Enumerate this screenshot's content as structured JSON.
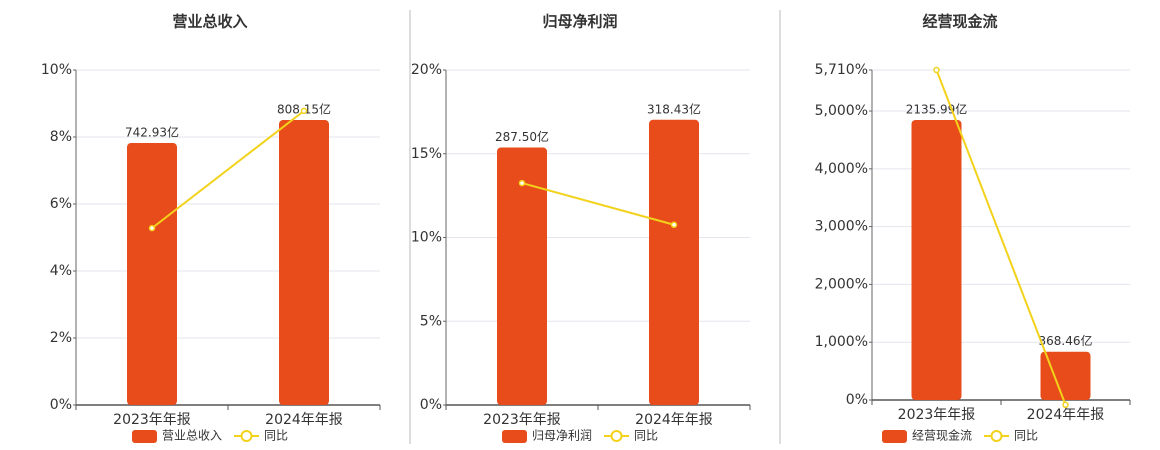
{
  "chart_data": [
    {
      "type": "bar-line",
      "title": "营业总收入",
      "categories": [
        "2023年年报",
        "2024年年报"
      ],
      "series": [
        {
          "name": "营业总收入",
          "color": "#e84c1a",
          "axis": "y2",
          "values": [
            742.93,
            808.15
          ],
          "value_labels": [
            "742.93亿",
            "808.15亿"
          ]
        },
        {
          "name": "同比",
          "color": "#f2d21b",
          "values": [
            5.28,
            8.78
          ]
        }
      ],
      "ylim": [
        0,
        10
      ],
      "yticks": [
        {
          "value": 0,
          "label": "0%"
        },
        {
          "value": 2,
          "label": "2%"
        },
        {
          "value": 4,
          "label": "4%"
        },
        {
          "value": 6,
          "label": "6%"
        },
        {
          "value": 8,
          "label": "8%"
        },
        {
          "value": 10,
          "label": "10%"
        }
      ],
      "y2lim": [
        0,
        950
      ],
      "grid": true
    },
    {
      "type": "bar-line",
      "title": "归母净利润",
      "categories": [
        "2023年年报",
        "2024年年报"
      ],
      "series": [
        {
          "name": "归母净利润",
          "color": "#e84c1a",
          "axis": "y2",
          "values": [
            287.5,
            318.43
          ],
          "value_labels": [
            "287.50亿",
            "318.43亿"
          ]
        },
        {
          "name": "同比",
          "color": "#f2d21b",
          "values": [
            13.25,
            10.76
          ]
        }
      ],
      "ylim": [
        0,
        20
      ],
      "yticks": [
        {
          "value": 0,
          "label": "0%"
        },
        {
          "value": 5,
          "label": "5%"
        },
        {
          "value": 10,
          "label": "10%"
        },
        {
          "value": 15,
          "label": "15%"
        },
        {
          "value": 20,
          "label": "20%"
        }
      ],
      "y2lim": [
        0,
        374
      ],
      "grid": true
    },
    {
      "type": "bar-line",
      "title": "经营现金流",
      "categories": [
        "2023年年报",
        "2024年年报"
      ],
      "series": [
        {
          "name": "经营现金流",
          "color": "#e84c1a",
          "axis": "y2",
          "values": [
            2135.99,
            368.46
          ],
          "value_labels": [
            "2135.99亿",
            "368.46亿"
          ]
        },
        {
          "name": "同比",
          "color": "#f2d21b",
          "values": [
            5710,
            -82.75
          ]
        }
      ],
      "ylim": [
        0,
        5710
      ],
      "yticks": [
        {
          "value": 0,
          "label": "0%"
        },
        {
          "value": 1000,
          "label": "1,000%"
        },
        {
          "value": 2000,
          "label": "2,000%"
        },
        {
          "value": 3000,
          "label": "3,000%"
        },
        {
          "value": 4000,
          "label": "4,000%"
        },
        {
          "value": 5000,
          "label": "5,000%"
        },
        {
          "value": 5710,
          "label": "5,710%"
        }
      ],
      "y2lim": [
        0,
        2517
      ],
      "grid": true
    }
  ]
}
